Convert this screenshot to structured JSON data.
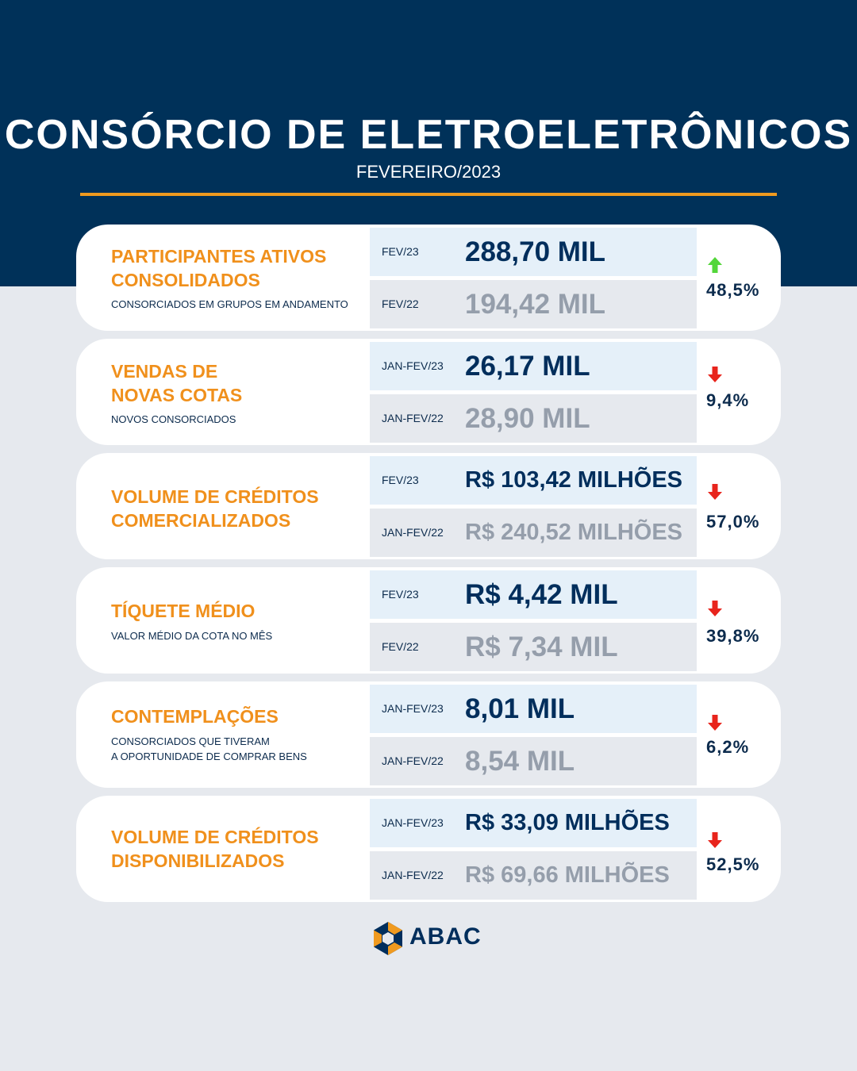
{
  "header": {
    "title": "CONSÓRCIO DE ELETROELETRÔNICOS",
    "subtitle": "FEVEREIRO/2023"
  },
  "colors": {
    "navy": "#003159",
    "accent_orange": "#f0901c",
    "up_green": "#53d63a",
    "down_red": "#e8241c"
  },
  "cards": [
    {
      "title": [
        "PARTICIPANTES ATIVOS",
        "CONSOLIDADOS"
      ],
      "description": [
        "CONSORCIADOS EM GRUPOS EM ANDAMENTO"
      ],
      "current": {
        "label": "FEV/23",
        "value": "288,70 MIL"
      },
      "previous": {
        "label": "FEV/22",
        "value": "194,42 MIL"
      },
      "trend": "up",
      "trend_icon": "arrow-up-icon",
      "change": "48,5%"
    },
    {
      "title": [
        "VENDAS DE",
        "NOVAS COTAS"
      ],
      "description": [
        "NOVOS CONSORCIADOS"
      ],
      "current": {
        "label": "JAN-FEV/23",
        "value": "26,17 MIL"
      },
      "previous": {
        "label": "JAN-FEV/22",
        "value": "28,90 MIL"
      },
      "trend": "down",
      "trend_icon": "arrow-down-icon",
      "change": "9,4%"
    },
    {
      "title": [
        "VOLUME DE CRÉDITOS",
        "COMERCIALIZADOS"
      ],
      "description": [],
      "current": {
        "label": "FEV/23",
        "value": "R$ 103,42 MILHÕES"
      },
      "previous": {
        "label": "JAN-FEV/22",
        "value": "R$ 240,52 MILHÕES"
      },
      "trend": "down",
      "trend_icon": "arrow-down-icon",
      "change": "57,0%"
    },
    {
      "title": [
        "TÍQUETE MÉDIO"
      ],
      "description": [
        "VALOR MÉDIO DA COTA NO MÊS"
      ],
      "current": {
        "label": "FEV/23",
        "value": "R$ 4,42 MIL"
      },
      "previous": {
        "label": "FEV/22",
        "value": "R$ 7,34 MIL"
      },
      "trend": "down",
      "trend_icon": "arrow-down-icon",
      "change": "39,8%"
    },
    {
      "title": [
        "CONTEMPLAÇÕES"
      ],
      "description": [
        "CONSORCIADOS QUE TIVERAM",
        "A OPORTUNIDADE DE COMPRAR BENS"
      ],
      "current": {
        "label": "JAN-FEV/23",
        "value": "8,01 MIL"
      },
      "previous": {
        "label": "JAN-FEV/22",
        "value": "8,54 MIL"
      },
      "trend": "down",
      "trend_icon": "arrow-down-icon",
      "change": "6,2%"
    },
    {
      "title": [
        "VOLUME DE CRÉDITOS",
        "DISPONIBILIZADOS"
      ],
      "description": [],
      "current": {
        "label": "JAN-FEV/23",
        "value": "R$ 33,09 MILHÕES"
      },
      "previous": {
        "label": "JAN-FEV/22",
        "value": "R$ 69,66 MILHÕES"
      },
      "trend": "down",
      "trend_icon": "arrow-down-icon",
      "change": "52,5%"
    }
  ],
  "footer": {
    "logo_icon": "abac-logo-icon",
    "brand": "ABAC"
  }
}
